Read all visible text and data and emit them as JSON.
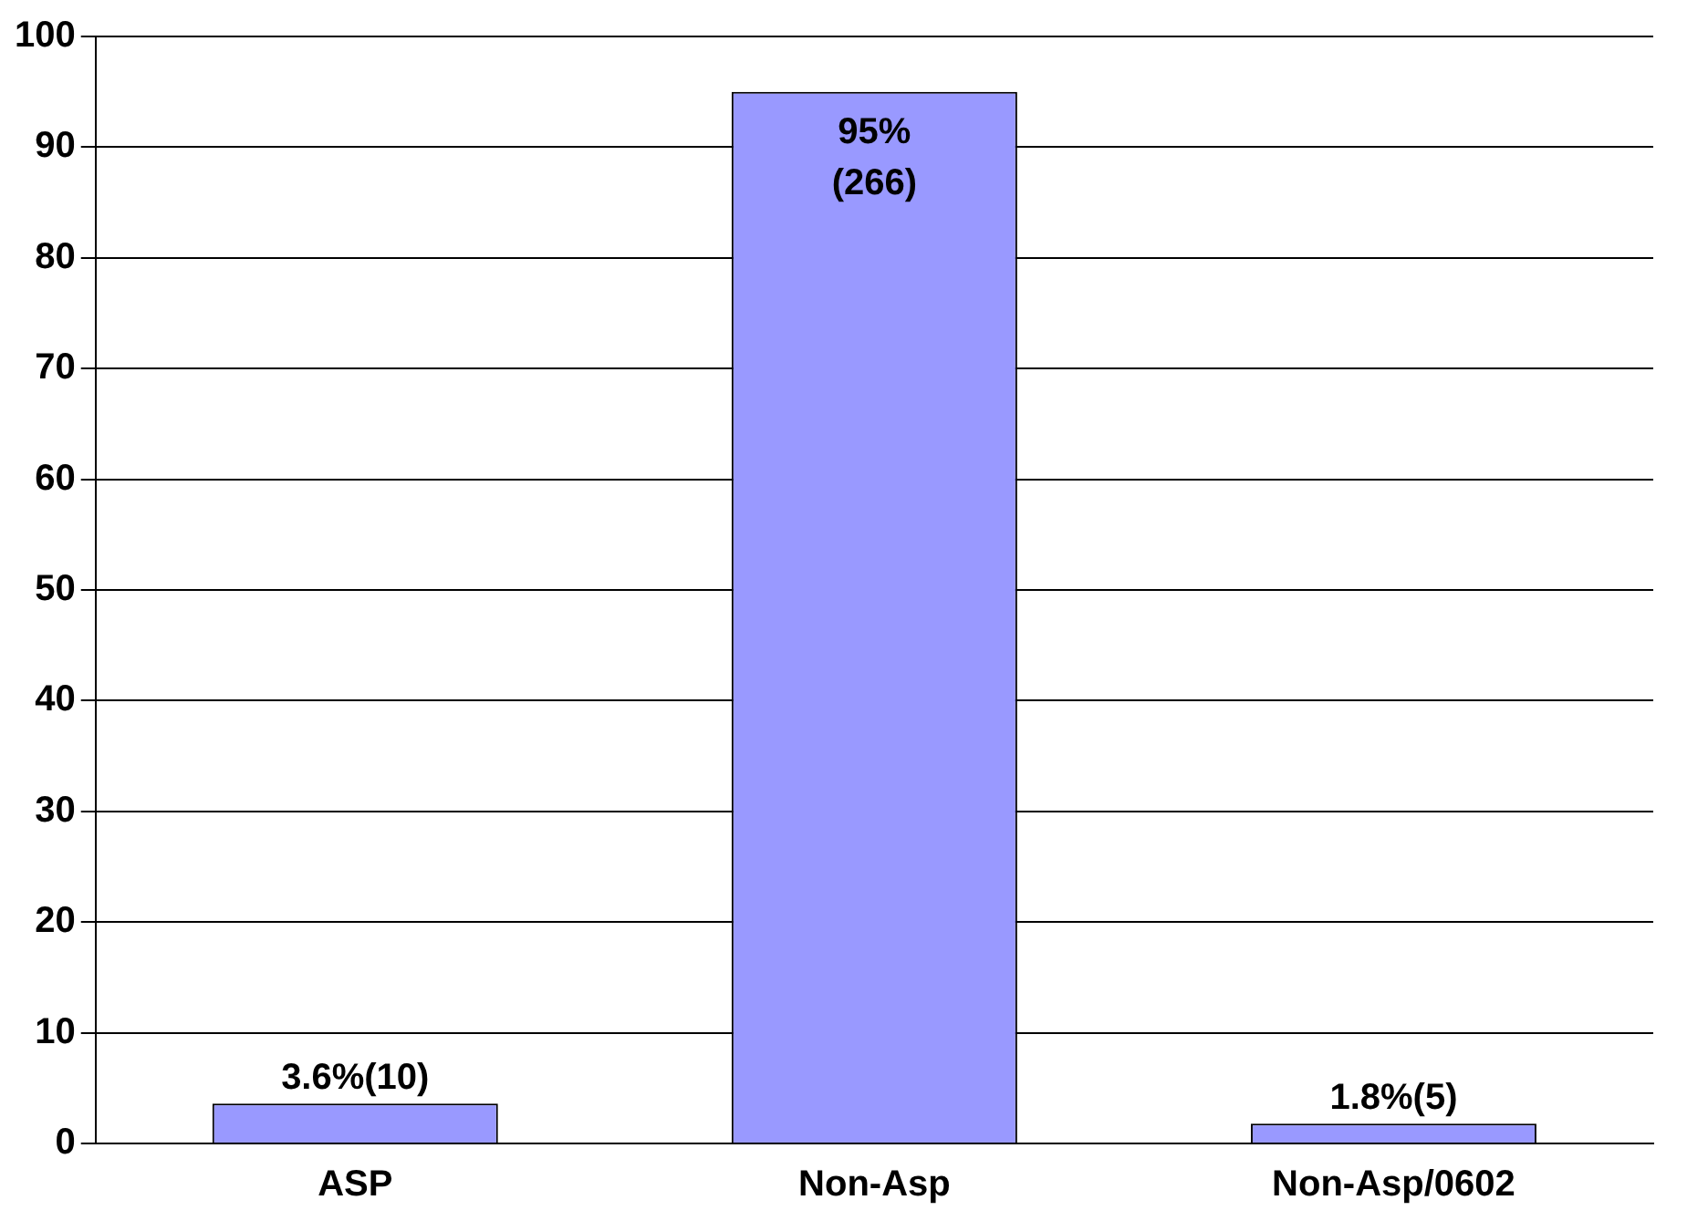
{
  "chart_data": {
    "type": "bar",
    "categories": [
      "ASP",
      "Non-Asp",
      "Non-Asp/0602"
    ],
    "values": [
      3.6,
      95,
      1.8
    ],
    "value_labels": [
      "3.6%(10)",
      "95% (266)",
      "1.8%(5)"
    ],
    "color": "#9999ff",
    "ylim": [
      0,
      100
    ],
    "yticks": [
      0,
      10,
      20,
      30,
      40,
      50,
      60,
      70,
      80,
      90,
      100
    ],
    "grid": "y",
    "legend": false
  }
}
